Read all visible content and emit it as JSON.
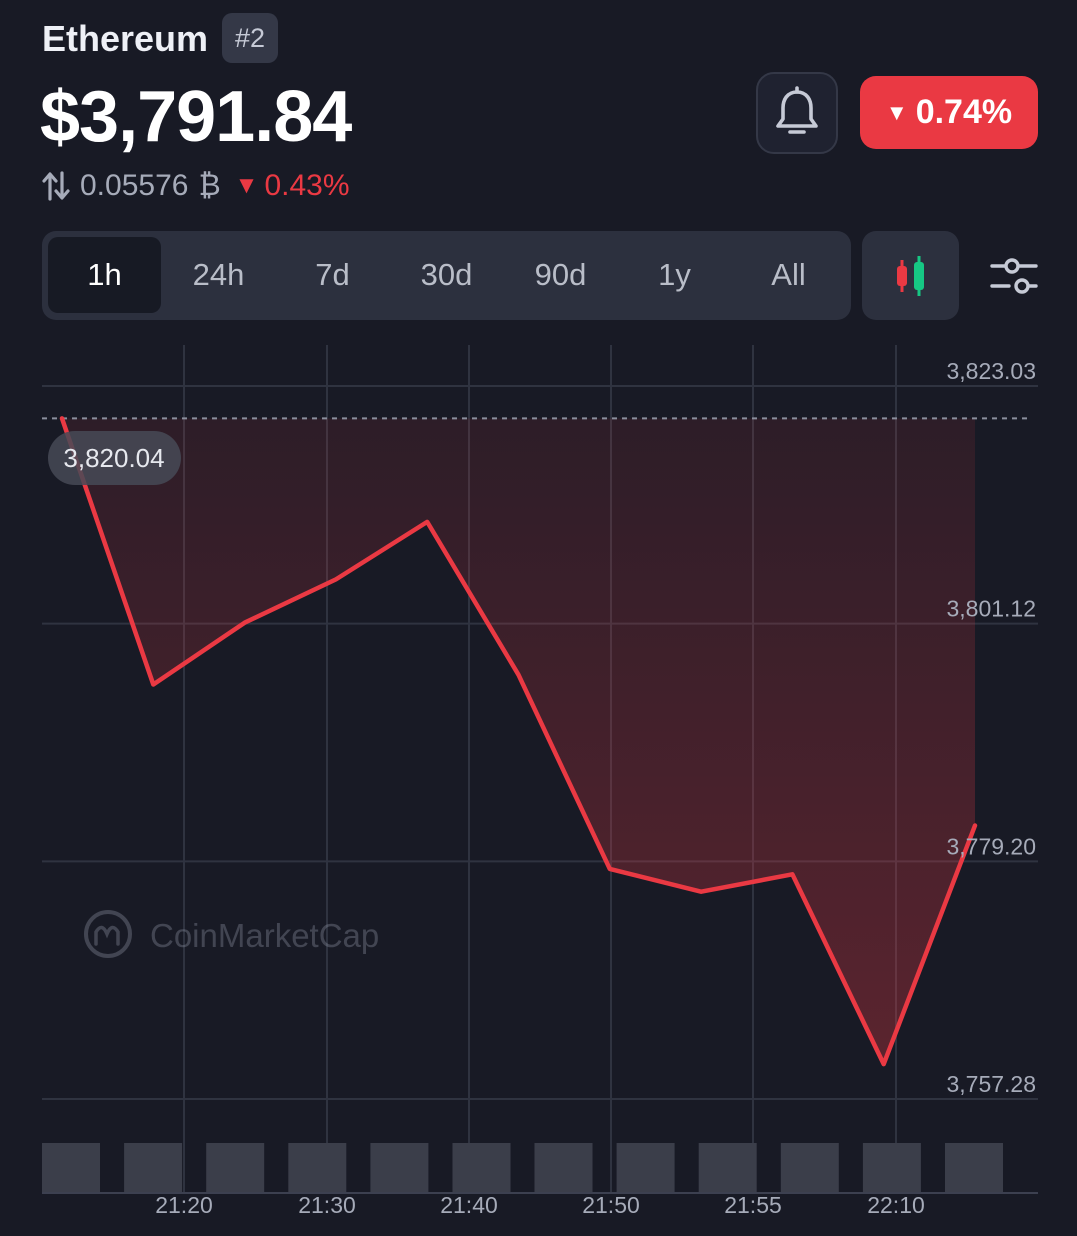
{
  "header": {
    "coin_name": "Ethereum",
    "rank": "#2",
    "price": "$3,791.84",
    "btc_price": "0.05576",
    "btc_symbol": "₿",
    "btc_change": "0.43%",
    "change_24h": "0.74%"
  },
  "icons": {
    "swap": "swap-arrows-icon",
    "bell": "bell-icon",
    "candlestick": "candlestick-icon",
    "settings": "sliders-icon"
  },
  "colors": {
    "background": "#181a25",
    "negative": "#ea3943",
    "positive": "#16c784",
    "muted_text": "#a6abb9"
  },
  "range_tabs": [
    {
      "label": "1h",
      "active": true
    },
    {
      "label": "24h",
      "active": false
    },
    {
      "label": "7d",
      "active": false
    },
    {
      "label": "30d",
      "active": false
    },
    {
      "label": "90d",
      "active": false
    },
    {
      "label": "1y",
      "active": false
    },
    {
      "label": "All",
      "active": false
    }
  ],
  "watermark": "CoinMarketCap",
  "chart_data": {
    "type": "area",
    "title": "",
    "xlabel": "",
    "ylabel": "",
    "x_tick_labels": [
      "21:20",
      "21:30",
      "21:40",
      "21:50",
      "21:55",
      "22:10"
    ],
    "y_tick_labels": [
      "3,823.03",
      "3,801.12",
      "3,779.20",
      "3,757.28"
    ],
    "ylim": [
      3757.28,
      3823.03
    ],
    "series": [
      {
        "values": [
          3820.04,
          3795.5,
          3801.2,
          3805.2,
          3810.5,
          3796.4,
          3778.5,
          3776.4,
          3778.0,
          3760.5,
          3782.5
        ]
      }
    ],
    "reference_value": 3820.04,
    "reference_label": "3,820.04",
    "volume_bars": 12,
    "grid": true,
    "line_color": "#ea3943"
  }
}
